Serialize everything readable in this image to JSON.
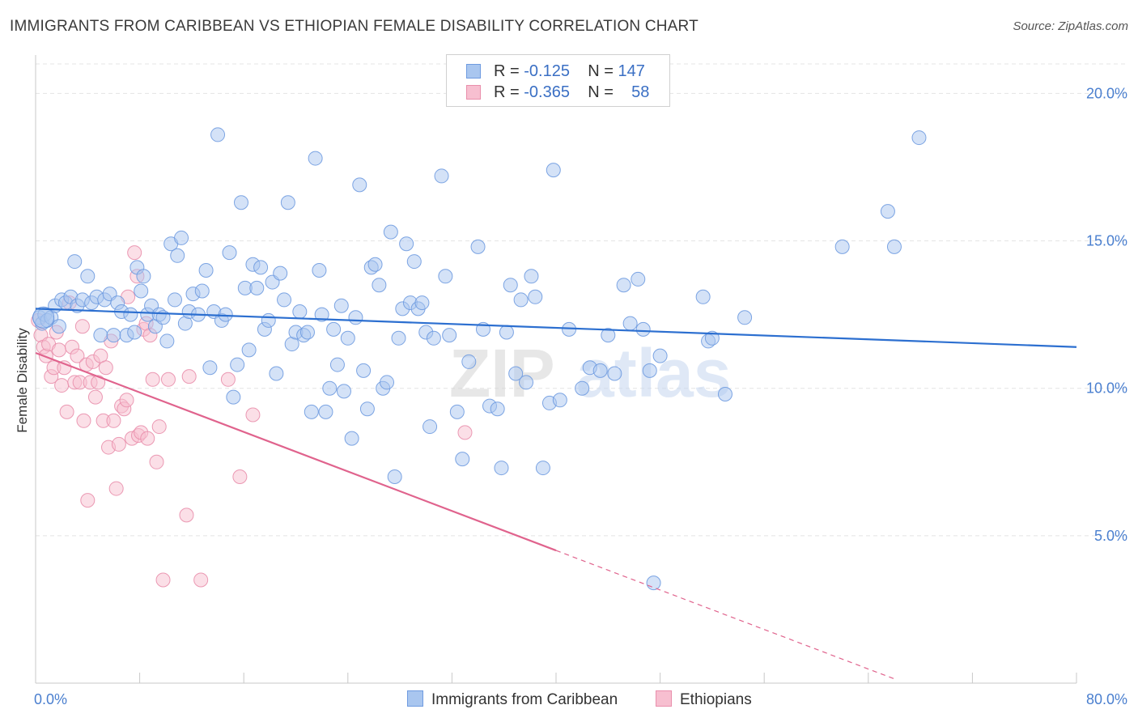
{
  "header": {
    "title": "IMMIGRANTS FROM CARIBBEAN VS ETHIOPIAN FEMALE DISABILITY CORRELATION CHART",
    "source": "Source: ZipAtlas.com"
  },
  "legend": {
    "rows": [
      {
        "r_label": "R = ",
        "r_value": "-0.125",
        "n_label": "N = ",
        "n_value": "147",
        "color": "#a9c6ef",
        "border": "#6f9be0"
      },
      {
        "r_label": "R = ",
        "r_value": "-0.365",
        "n_label": "N = ",
        "n_value": "58",
        "color": "#f7bfd0",
        "border": "#e98fac"
      }
    ]
  },
  "watermark": {
    "part1": "ZIP",
    "part2": "atlas"
  },
  "chart_data": {
    "type": "scatter",
    "title": "IMMIGRANTS FROM CARIBBEAN VS ETHIOPIAN FEMALE DISABILITY CORRELATION CHART",
    "xlabel": "",
    "ylabel": "Female Disability",
    "xlim": [
      0,
      80
    ],
    "ylim": [
      0,
      21
    ],
    "x_ticks": [
      "0.0%",
      "80.0%"
    ],
    "y_ticks": [
      {
        "value": 5,
        "label": "5.0%"
      },
      {
        "value": 10,
        "label": "10.0%"
      },
      {
        "value": 15,
        "label": "15.0%"
      },
      {
        "value": 20,
        "label": "20.0%"
      }
    ],
    "grid": true,
    "legend_position": "bottom",
    "series": [
      {
        "name": "Immigrants from Caribbean",
        "color": "#a9c6ef",
        "stroke": "#6f9be0",
        "trend_color": "#2c6fd0",
        "trend": {
          "x0": 0,
          "y0": 12.7,
          "x1": 80,
          "y1": 11.4
        },
        "points": [
          [
            0.3,
            12.4
          ],
          [
            0.5,
            12.2
          ],
          [
            0.7,
            12.5
          ],
          [
            0.9,
            12.3
          ],
          [
            1.2,
            12.4
          ],
          [
            1.5,
            12.8
          ],
          [
            1.8,
            12.1
          ],
          [
            2.0,
            13.0
          ],
          [
            2.3,
            12.9
          ],
          [
            2.7,
            13.1
          ],
          [
            3.0,
            14.3
          ],
          [
            3.2,
            12.8
          ],
          [
            3.6,
            13.0
          ],
          [
            4.0,
            13.8
          ],
          [
            4.3,
            12.9
          ],
          [
            4.7,
            13.1
          ],
          [
            5.0,
            11.8
          ],
          [
            5.3,
            13.0
          ],
          [
            5.7,
            13.2
          ],
          [
            6.0,
            11.8
          ],
          [
            6.3,
            12.9
          ],
          [
            6.6,
            12.6
          ],
          [
            7.0,
            11.8
          ],
          [
            7.3,
            12.5
          ],
          [
            7.6,
            11.9
          ],
          [
            7.8,
            14.1
          ],
          [
            8.1,
            13.3
          ],
          [
            8.3,
            13.8
          ],
          [
            8.6,
            12.5
          ],
          [
            8.9,
            12.8
          ],
          [
            9.2,
            12.1
          ],
          [
            9.5,
            12.5
          ],
          [
            9.8,
            12.4
          ],
          [
            10.1,
            11.6
          ],
          [
            10.4,
            14.9
          ],
          [
            10.7,
            13.0
          ],
          [
            10.9,
            14.5
          ],
          [
            11.2,
            15.1
          ],
          [
            11.5,
            12.2
          ],
          [
            11.8,
            12.6
          ],
          [
            12.1,
            13.2
          ],
          [
            12.5,
            12.5
          ],
          [
            12.8,
            13.3
          ],
          [
            13.1,
            14.0
          ],
          [
            13.4,
            10.7
          ],
          [
            13.7,
            12.6
          ],
          [
            14.0,
            18.6
          ],
          [
            14.3,
            12.3
          ],
          [
            14.6,
            12.5
          ],
          [
            14.9,
            14.6
          ],
          [
            15.2,
            9.7
          ],
          [
            15.5,
            10.8
          ],
          [
            15.8,
            16.3
          ],
          [
            16.1,
            13.4
          ],
          [
            16.4,
            11.3
          ],
          [
            16.7,
            14.2
          ],
          [
            17.0,
            13.4
          ],
          [
            17.3,
            14.1
          ],
          [
            17.6,
            12.0
          ],
          [
            17.9,
            12.3
          ],
          [
            18.2,
            13.6
          ],
          [
            18.5,
            10.5
          ],
          [
            18.8,
            13.9
          ],
          [
            19.1,
            13.0
          ],
          [
            19.4,
            16.3
          ],
          [
            19.7,
            11.5
          ],
          [
            20.0,
            11.9
          ],
          [
            20.3,
            12.6
          ],
          [
            20.6,
            11.8
          ],
          [
            20.9,
            11.9
          ],
          [
            21.2,
            9.2
          ],
          [
            21.5,
            17.8
          ],
          [
            21.8,
            14.0
          ],
          [
            22.0,
            12.5
          ],
          [
            22.3,
            9.2
          ],
          [
            22.6,
            10.0
          ],
          [
            22.9,
            12.0
          ],
          [
            23.2,
            10.8
          ],
          [
            23.5,
            12.8
          ],
          [
            23.7,
            9.9
          ],
          [
            24.0,
            11.7
          ],
          [
            24.3,
            8.3
          ],
          [
            24.6,
            12.4
          ],
          [
            24.9,
            16.9
          ],
          [
            25.2,
            10.6
          ],
          [
            25.5,
            9.3
          ],
          [
            25.8,
            14.1
          ],
          [
            26.1,
            14.2
          ],
          [
            26.4,
            13.5
          ],
          [
            26.7,
            10.0
          ],
          [
            27.0,
            10.2
          ],
          [
            27.3,
            15.3
          ],
          [
            27.6,
            7.0
          ],
          [
            27.9,
            11.7
          ],
          [
            28.2,
            12.7
          ],
          [
            28.5,
            14.9
          ],
          [
            28.8,
            12.9
          ],
          [
            29.1,
            14.3
          ],
          [
            29.4,
            12.7
          ],
          [
            29.7,
            12.9
          ],
          [
            30.0,
            11.9
          ],
          [
            30.3,
            8.7
          ],
          [
            30.6,
            11.7
          ],
          [
            31.2,
            17.2
          ],
          [
            31.5,
            13.8
          ],
          [
            31.8,
            11.8
          ],
          [
            32.4,
            9.2
          ],
          [
            32.8,
            7.6
          ],
          [
            33.3,
            10.9
          ],
          [
            34.0,
            14.8
          ],
          [
            34.4,
            12.0
          ],
          [
            34.9,
            9.4
          ],
          [
            35.5,
            9.3
          ],
          [
            35.8,
            7.3
          ],
          [
            36.2,
            11.9
          ],
          [
            36.5,
            13.5
          ],
          [
            36.9,
            10.5
          ],
          [
            37.3,
            13.0
          ],
          [
            37.7,
            10.2
          ],
          [
            38.1,
            13.8
          ],
          [
            38.4,
            13.1
          ],
          [
            39.0,
            7.3
          ],
          [
            39.5,
            9.5
          ],
          [
            39.8,
            17.4
          ],
          [
            40.3,
            9.6
          ],
          [
            41.0,
            12.0
          ],
          [
            42.0,
            10.0
          ],
          [
            42.6,
            10.7
          ],
          [
            43.4,
            10.6
          ],
          [
            44.0,
            11.8
          ],
          [
            44.5,
            10.5
          ],
          [
            45.2,
            13.5
          ],
          [
            45.7,
            12.2
          ],
          [
            46.3,
            13.7
          ],
          [
            46.7,
            12.0
          ],
          [
            47.2,
            10.6
          ],
          [
            48.0,
            11.1
          ],
          [
            51.3,
            13.1
          ],
          [
            51.7,
            11.6
          ],
          [
            52.0,
            11.7
          ],
          [
            53.0,
            9.8
          ],
          [
            54.5,
            12.4
          ],
          [
            62.0,
            14.8
          ],
          [
            65.5,
            16.0
          ],
          [
            66.0,
            14.8
          ],
          [
            67.9,
            18.5
          ],
          [
            47.5,
            3.4
          ]
        ]
      },
      {
        "name": "Ethiopians",
        "color": "#f7bfd0",
        "stroke": "#e98fac",
        "trend_color": "#e0638d",
        "trend": {
          "x0": 0,
          "y0": 11.2,
          "x1": 40,
          "y1": 4.5,
          "dash_x1": 66
        },
        "points": [
          [
            0.2,
            12.3
          ],
          [
            0.4,
            11.8
          ],
          [
            0.6,
            11.4
          ],
          [
            0.8,
            11.1
          ],
          [
            1.0,
            11.5
          ],
          [
            1.2,
            10.4
          ],
          [
            1.4,
            10.7
          ],
          [
            1.6,
            11.9
          ],
          [
            1.8,
            11.3
          ],
          [
            2.0,
            10.1
          ],
          [
            2.2,
            10.7
          ],
          [
            2.4,
            9.2
          ],
          [
            2.6,
            12.9
          ],
          [
            2.8,
            11.4
          ],
          [
            3.0,
            10.2
          ],
          [
            3.2,
            11.1
          ],
          [
            3.4,
            10.2
          ],
          [
            3.6,
            12.1
          ],
          [
            3.7,
            8.9
          ],
          [
            3.9,
            10.8
          ],
          [
            4.0,
            6.2
          ],
          [
            4.2,
            10.2
          ],
          [
            4.4,
            10.9
          ],
          [
            4.6,
            9.7
          ],
          [
            4.8,
            10.2
          ],
          [
            5.0,
            11.1
          ],
          [
            5.2,
            8.9
          ],
          [
            5.4,
            10.7
          ],
          [
            5.6,
            8.0
          ],
          [
            5.8,
            11.6
          ],
          [
            6.0,
            8.9
          ],
          [
            6.2,
            6.6
          ],
          [
            6.4,
            8.1
          ],
          [
            6.6,
            9.4
          ],
          [
            6.8,
            9.3
          ],
          [
            7.0,
            9.6
          ],
          [
            7.1,
            13.1
          ],
          [
            7.4,
            8.3
          ],
          [
            7.6,
            14.6
          ],
          [
            7.8,
            13.8
          ],
          [
            7.9,
            8.4
          ],
          [
            8.1,
            8.5
          ],
          [
            8.3,
            12.0
          ],
          [
            8.5,
            12.2
          ],
          [
            8.6,
            8.3
          ],
          [
            8.8,
            11.8
          ],
          [
            9.0,
            10.3
          ],
          [
            9.3,
            7.5
          ],
          [
            9.5,
            8.7
          ],
          [
            9.8,
            3.5
          ],
          [
            10.2,
            10.3
          ],
          [
            11.6,
            5.7
          ],
          [
            11.8,
            10.4
          ],
          [
            12.7,
            3.5
          ],
          [
            14.8,
            10.3
          ],
          [
            15.7,
            7.0
          ],
          [
            16.7,
            9.1
          ],
          [
            33.0,
            8.5
          ]
        ]
      }
    ]
  }
}
